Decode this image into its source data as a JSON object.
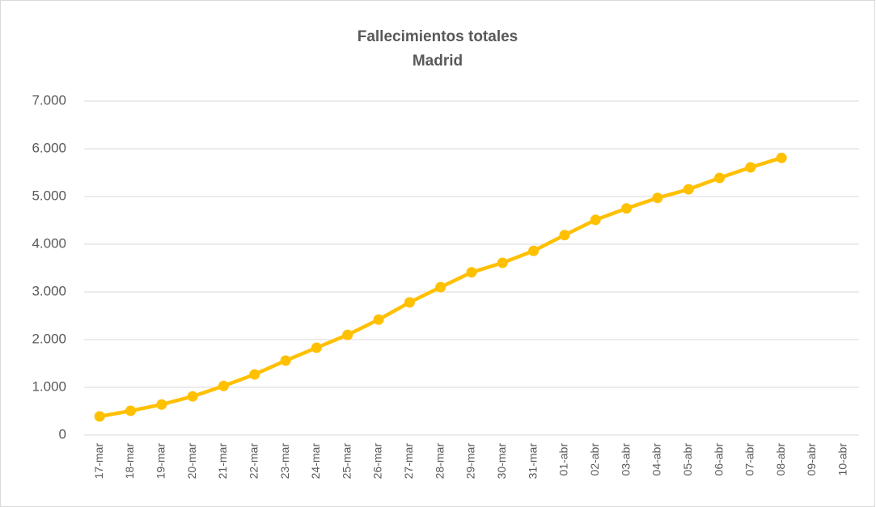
{
  "chart_data": {
    "type": "line",
    "title": "Fallecimientos totales",
    "subtitle": "Madrid",
    "categories": [
      "17-mar",
      "18-mar",
      "19-mar",
      "20-mar",
      "21-mar",
      "22-mar",
      "23-mar",
      "24-mar",
      "25-mar",
      "26-mar",
      "27-mar",
      "28-mar",
      "29-mar",
      "30-mar",
      "31-mar",
      "01-abr",
      "02-abr",
      "03-abr",
      "04-abr",
      "05-abr",
      "06-abr",
      "07-abr",
      "08-abr",
      "09-abr",
      "10-abr"
    ],
    "series": [
      {
        "name": "Madrid",
        "color": "#FFC000",
        "values": [
          390,
          508,
          640,
          810,
          1030,
          1270,
          1560,
          1830,
          2100,
          2420,
          2780,
          3100,
          3410,
          3610,
          3860,
          4190,
          4510,
          4750,
          4970,
          5150,
          5390,
          5610,
          5810,
          null,
          null
        ]
      }
    ],
    "ylim": [
      0,
      7000
    ],
    "yticks": [
      0,
      {
        "value": 1000,
        "label": "1.000"
      },
      {
        "value": 2000,
        "label": "2.000"
      },
      {
        "value": 3000,
        "label": "3.000"
      },
      {
        "value": 4000,
        "label": "4.000"
      },
      {
        "value": 5000,
        "label": "5.000"
      },
      {
        "value": 6000,
        "label": "6.000"
      },
      {
        "value": 7000,
        "label": "7.000"
      }
    ],
    "grid": true
  }
}
